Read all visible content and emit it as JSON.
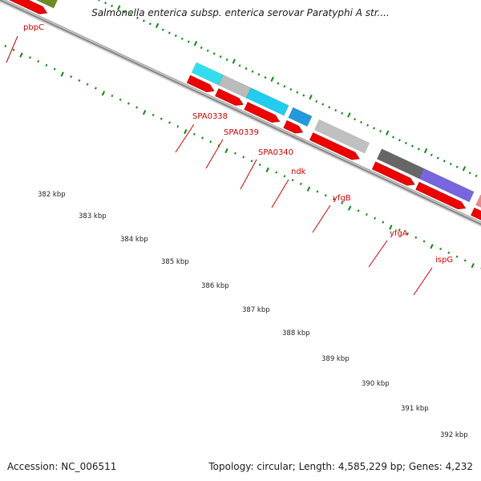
{
  "title": "Salmonella enterica subsp. enterica serovar Paratyphi A str....",
  "footer": {
    "accession": "Accession: NC_006511",
    "summary": "Topology: circular; Length: 4,585,229 bp; Genes: 4,232"
  },
  "colors": {
    "background": "#ffffff",
    "label_text": "#cc0000",
    "tick_marks": "#118811",
    "backbone": "#888888",
    "cds": "#ee0000",
    "pbpC": "#6b8e23",
    "SPA0338": "#33ddee",
    "SPA0339": "#bbbbbb",
    "SPA0340": "#22ccee",
    "ndk": "#2299dd",
    "yfgB": "#c0c0c0",
    "yfgA": "#666666",
    "ispG": "#7766dd",
    "next_gene": "#ee8888"
  },
  "genes": [
    "pbpC",
    "SPA0338",
    "SPA0339",
    "SPA0340",
    "ndk",
    "yfgB",
    "yfgA",
    "ispG"
  ],
  "scale_labels": [
    "382 kbp",
    "383 kbp",
    "384 kbp",
    "385 kbp",
    "386 kbp",
    "387 kbp",
    "388 kbp",
    "389 kbp",
    "390 kbp",
    "391 kbp",
    "392 kbp"
  ]
}
